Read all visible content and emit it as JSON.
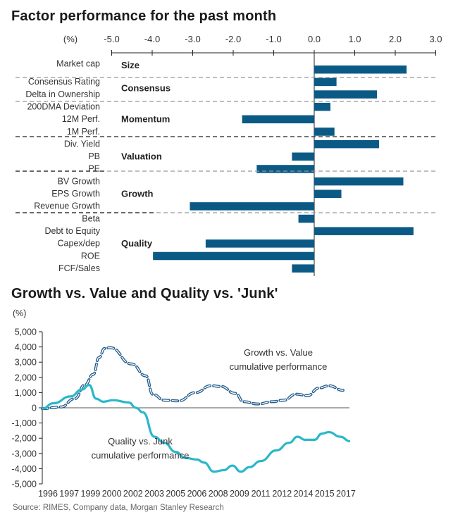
{
  "chart_data": [
    {
      "type": "bar",
      "orientation": "horizontal",
      "title": "Factor performance for the past month",
      "unit_label": "(%)",
      "xlim": [
        -5.0,
        3.0
      ],
      "xticks": [
        "-5.0",
        "-4.0",
        "-3.0",
        "-2.0",
        "-1.0",
        "0.0",
        "1.0",
        "2.0",
        "3.0"
      ],
      "bar_color": "#0b5a86",
      "groups": [
        {
          "name": "Size",
          "items": [
            {
              "label": "Market cap",
              "value": 2.28
            }
          ]
        },
        {
          "name": "Consensus",
          "items": [
            {
              "label": "Consensus Rating",
              "value": 0.55
            },
            {
              "label": "Delta in Ownership",
              "value": 1.55
            }
          ]
        },
        {
          "name": "Momentum",
          "items": [
            {
              "label": "200DMA Deviation",
              "value": 0.4
            },
            {
              "label": "12M Perf.",
              "value": -1.78
            },
            {
              "label": "1M Perf.",
              "value": 0.5
            }
          ]
        },
        {
          "name": "Valuation",
          "items": [
            {
              "label": "Div. Yield",
              "value": 1.6
            },
            {
              "label": "PB",
              "value": -0.55
            },
            {
              "label": "PE",
              "value": -1.42
            }
          ]
        },
        {
          "name": "Growth",
          "items": [
            {
              "label": "BV Growth",
              "value": 2.2
            },
            {
              "label": "EPS Growth",
              "value": 0.67
            },
            {
              "label": "Revenue Growth",
              "value": -3.07
            }
          ]
        },
        {
          "name": "Quality",
          "items": [
            {
              "label": "Beta",
              "value": -0.39
            },
            {
              "label": "Debt to Equity",
              "value": 2.45
            },
            {
              "label": "Capex/dep",
              "value": -2.68
            },
            {
              "label": "ROE",
              "value": -3.98
            },
            {
              "label": "FCF/Sales",
              "value": -0.55
            }
          ]
        }
      ]
    },
    {
      "type": "line",
      "title": "Growth vs. Value and Quality vs. 'Junk'",
      "ylabel": "(%)",
      "ylim": [
        -5000,
        5000
      ],
      "yticks": [
        "5,000",
        "4,000",
        "3,000",
        "2,000",
        "1,000",
        "0",
        "-1,000",
        "-2,000",
        "-3,000",
        "-4,000",
        "-5,000"
      ],
      "xticks": [
        "1996",
        "1997",
        "1999",
        "2000",
        "2002",
        "2003",
        "2005",
        "2006",
        "2008",
        "2009",
        "2011",
        "2012",
        "2014",
        "2015",
        "2017"
      ],
      "series": [
        {
          "name": "Growth vs. Value cumulative performance",
          "label_lines": [
            "Growth vs. Value",
            "cumulative performance"
          ],
          "style": "dashed",
          "color": "#1f5a8a",
          "x": [
            1995.6,
            1996.9,
            1997.9,
            1998.6,
            1999.2,
            1999.6,
            2000.0,
            2000.4,
            2001.9,
            2002.9,
            2003.4,
            2004.2,
            2005.2,
            2006.4,
            2007.5,
            2008.2,
            2009.2,
            2009.8,
            2010.8,
            2011.8,
            2012.6,
            2013.5,
            2014.3,
            2015.1,
            2015.8,
            2016.8
          ],
          "y": [
            -50,
            50,
            600,
            1500,
            2200,
            3300,
            3900,
            3950,
            2880,
            2100,
            880,
            500,
            450,
            1000,
            1450,
            1400,
            950,
            400,
            250,
            400,
            500,
            900,
            800,
            1300,
            1450,
            1150
          ]
        },
        {
          "name": "Quality vs. Junk cumulative performance",
          "label_lines": [
            "Quality vs. Junk",
            "cumulative performance"
          ],
          "style": "solid",
          "color": "#2bb7c9",
          "x": [
            1995.6,
            1996.4,
            1997.6,
            1998.4,
            1998.9,
            1999.4,
            1999.9,
            2000.6,
            2001.7,
            2002.2,
            2002.7,
            2003.5,
            2004.2,
            2005.0,
            2005.7,
            2006.5,
            2007.0,
            2007.7,
            2008.4,
            2009.0,
            2009.6,
            2010.2,
            2011.0,
            2012.1,
            2013.0,
            2013.6,
            2014.1,
            2014.8,
            2015.3,
            2015.8,
            2016.6,
            2017.3
          ],
          "y": [
            -50,
            300,
            750,
            1200,
            1500,
            600,
            400,
            500,
            350,
            0,
            -300,
            -1900,
            -2300,
            -2900,
            -3300,
            -3400,
            -3600,
            -4200,
            -4100,
            -3800,
            -4200,
            -3900,
            -3500,
            -2800,
            -2300,
            -1900,
            -2100,
            -2100,
            -1700,
            -1600,
            -1900,
            -2200
          ]
        }
      ]
    }
  ],
  "source": "Source: RIMES, Company data, Morgan Stanley Research"
}
